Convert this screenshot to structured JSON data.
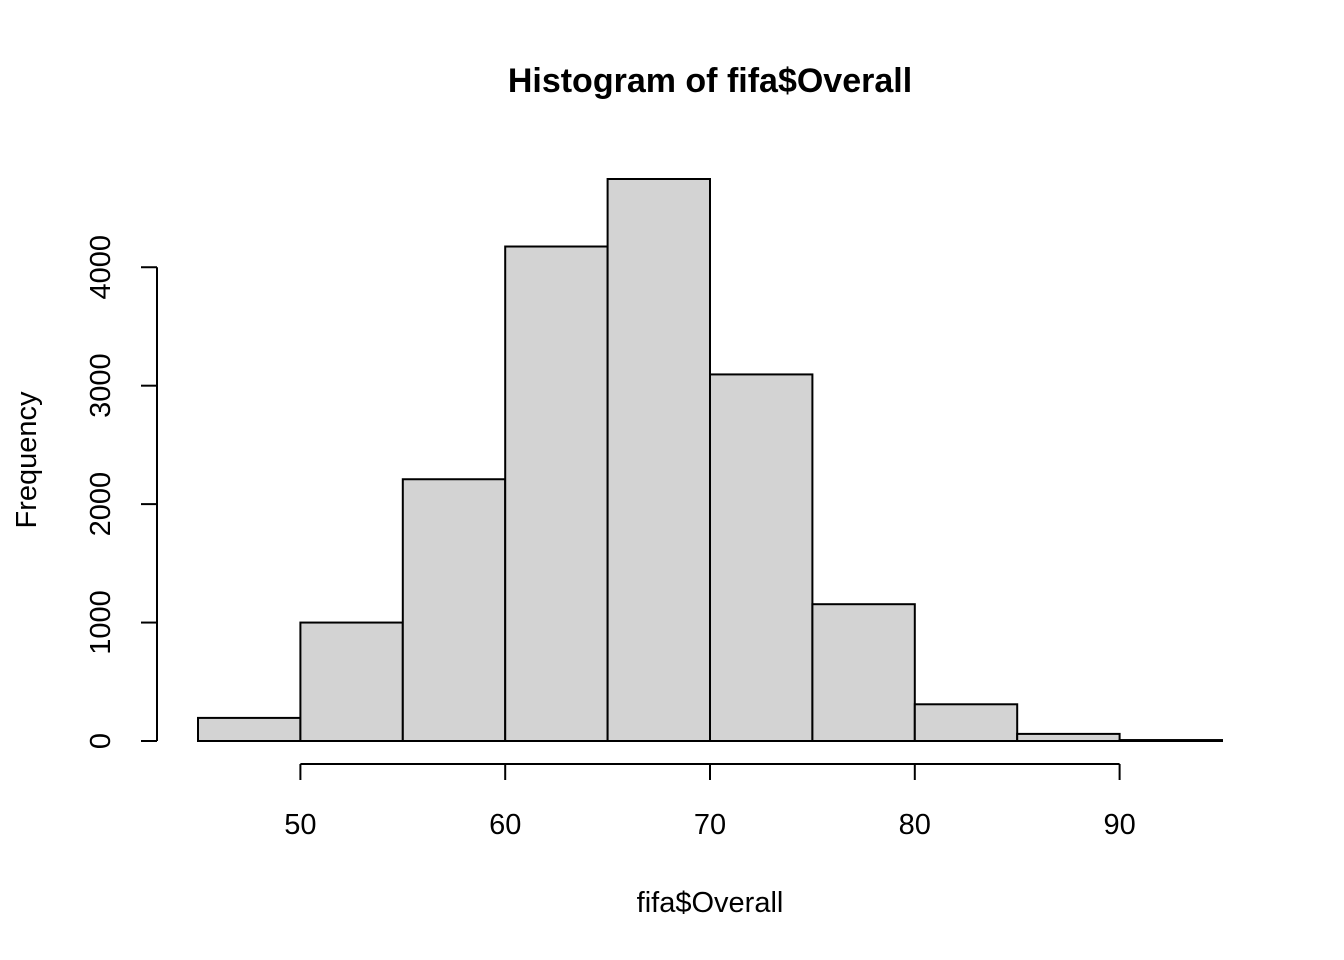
{
  "chart_data": {
    "type": "bar",
    "title": "Histogram of fifa$Overall",
    "xlabel": "fifa$Overall",
    "ylabel": "Frequency",
    "bins": [
      {
        "from": 45,
        "to": 50,
        "count": 195
      },
      {
        "from": 50,
        "to": 55,
        "count": 1000
      },
      {
        "from": 55,
        "to": 60,
        "count": 2210
      },
      {
        "from": 60,
        "to": 65,
        "count": 4175
      },
      {
        "from": 65,
        "to": 70,
        "count": 4745
      },
      {
        "from": 70,
        "to": 75,
        "count": 3095
      },
      {
        "from": 75,
        "to": 80,
        "count": 1155
      },
      {
        "from": 80,
        "to": 85,
        "count": 310
      },
      {
        "from": 85,
        "to": 90,
        "count": 60
      },
      {
        "from": 90,
        "to": 95,
        "count": 8
      }
    ],
    "xticks": [
      50,
      60,
      70,
      80,
      90
    ],
    "yticks": [
      0,
      1000,
      2000,
      3000,
      4000
    ],
    "xlim": [
      45,
      95
    ],
    "ylim": [
      0,
      4745
    ],
    "bar_color": "#d3d3d3",
    "grid": false,
    "legend": "none"
  }
}
